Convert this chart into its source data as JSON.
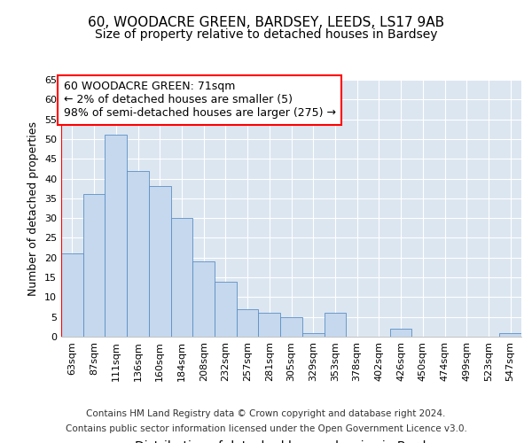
{
  "title1": "60, WOODACRE GREEN, BARDSEY, LEEDS, LS17 9AB",
  "title2": "Size of property relative to detached houses in Bardsey",
  "xlabel": "Distribution of detached houses by size in Bardsey",
  "ylabel": "Number of detached properties",
  "categories": [
    "63sqm",
    "87sqm",
    "111sqm",
    "136sqm",
    "160sqm",
    "184sqm",
    "208sqm",
    "232sqm",
    "257sqm",
    "281sqm",
    "305sqm",
    "329sqm",
    "353sqm",
    "378sqm",
    "402sqm",
    "426sqm",
    "450sqm",
    "474sqm",
    "499sqm",
    "523sqm",
    "547sqm"
  ],
  "values": [
    21,
    36,
    51,
    42,
    38,
    30,
    19,
    14,
    7,
    6,
    5,
    1,
    6,
    0,
    0,
    2,
    0,
    0,
    0,
    0,
    1
  ],
  "bar_color": "#c5d8ee",
  "bar_edge_color": "#5b8ec4",
  "annotation_box_text": "60 WOODACRE GREEN: 71sqm\n← 2% of detached houses are smaller (5)\n98% of semi-detached houses are larger (275) →",
  "footer1": "Contains HM Land Registry data © Crown copyright and database right 2024.",
  "footer2": "Contains public sector information licensed under the Open Government Licence v3.0.",
  "ylim": [
    0,
    65
  ],
  "plot_bg_color": "#dce6f1",
  "grid_color": "#ffffff",
  "title_fontsize": 11,
  "subtitle_fontsize": 10,
  "tick_fontsize": 8,
  "ylabel_fontsize": 9,
  "xlabel_fontsize": 10,
  "footer_fontsize": 7.5,
  "annot_fontsize": 9
}
